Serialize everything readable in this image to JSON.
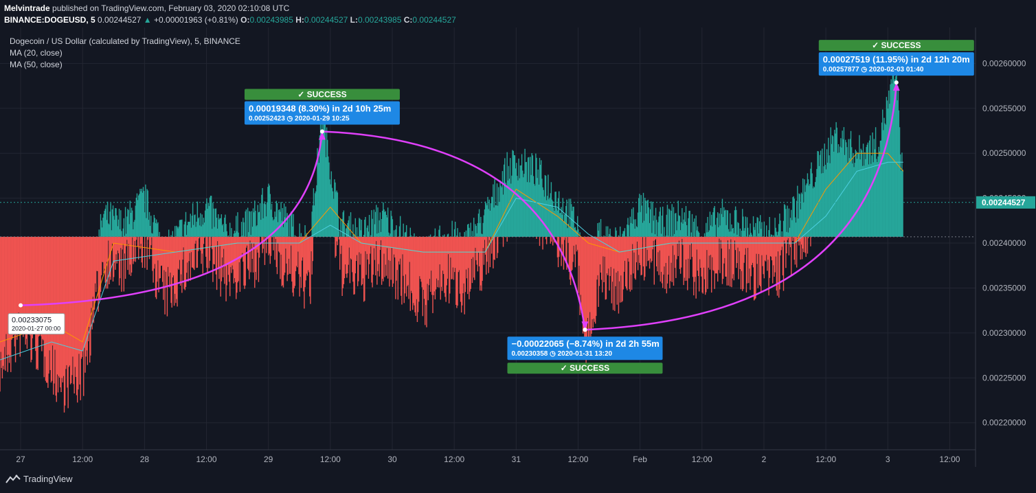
{
  "header": {
    "author": "Melvintrade",
    "published_text": " published on TradingView.com, February 03, 2020 02:10:08 UTC",
    "symbol": "BINANCE:DOGEUSD, 5",
    "last": "0.00244527",
    "change_arrow": "▲",
    "change": "+0.00001963 (+0.81%)",
    "o_label": "O:",
    "o_value": "0.00243985",
    "h_label": "H:",
    "h_value": "0.00244527",
    "l_label": "L:",
    "l_value": "0.00243985",
    "c_label": "C:",
    "c_value": "0.00244527"
  },
  "legend": {
    "title": "Dogecoin / US Dollar (calculated by TradingView), 5, BINANCE",
    "ma1": "MA (20, close)",
    "ma2": "MA (50, close)"
  },
  "footer": {
    "brand": "TradingView",
    "logo_icon": "tradingview-logo-icon"
  },
  "colors": {
    "background": "#131722",
    "up_fill": "#26a69a",
    "down_fill": "#ef5350",
    "ma20": "#ff9800",
    "ma50": "#4dd0e1",
    "arrow": "#e040fb",
    "callout": "#1e88e5",
    "success": "#388e3c",
    "price_badge": "#26a69a"
  },
  "chart_data": {
    "type": "area",
    "title": "Dogecoin / US Dollar (calculated by TradingView), 5, BINANCE",
    "xlabel": "",
    "ylabel": "",
    "x_ticks": [
      "27",
      "12:00",
      "28",
      "12:00",
      "29",
      "12:00",
      "30",
      "12:00",
      "31",
      "12:00",
      "Feb",
      "12:00",
      "2",
      "12:00",
      "3",
      "12:00"
    ],
    "y_ticks": [
      "0.00220000",
      "0.00225000",
      "0.00230000",
      "0.00235000",
      "0.00240000",
      "0.00245000",
      "0.00250000",
      "0.00255000",
      "0.00260000"
    ],
    "ylim": [
      0.00217,
      0.00264
    ],
    "xlim": [
      "2020-01-26 20:00",
      "2020-02-03 17:00"
    ],
    "grid": true,
    "baseline": 0.002407,
    "last_price": "0.00244527",
    "series": [
      {
        "name": "DOGEUSD",
        "x": [
          "2020-01-26 20:00",
          "2020-01-27 00:00",
          "2020-01-27 04:00",
          "2020-01-27 08:00",
          "2020-01-27 12:00",
          "2020-01-27 16:00",
          "2020-01-27 20:00",
          "2020-01-28 00:00",
          "2020-01-28 04:00",
          "2020-01-28 08:00",
          "2020-01-28 12:00",
          "2020-01-28 16:00",
          "2020-01-28 20:00",
          "2020-01-29 00:00",
          "2020-01-29 04:00",
          "2020-01-29 08:00",
          "2020-01-29 10:25",
          "2020-01-29 14:00",
          "2020-01-29 18:00",
          "2020-01-29 22:00",
          "2020-01-30 02:00",
          "2020-01-30 06:00",
          "2020-01-30 10:00",
          "2020-01-30 14:00",
          "2020-01-30 18:00",
          "2020-01-30 22:00",
          "2020-01-31 00:00",
          "2020-01-31 04:00",
          "2020-01-31 08:00",
          "2020-01-31 12:00",
          "2020-01-31 13:20",
          "2020-01-31 16:00",
          "2020-01-31 20:00",
          "2020-02-01 00:00",
          "2020-02-01 04:00",
          "2020-02-01 08:00",
          "2020-02-01 12:00",
          "2020-02-01 16:00",
          "2020-02-01 20:00",
          "2020-02-02 00:00",
          "2020-02-02 02:00",
          "2020-02-02 06:00",
          "2020-02-02 10:00",
          "2020-02-02 14:00",
          "2020-02-02 18:00",
          "2020-02-02 22:00",
          "2020-02-03 01:40",
          "2020-02-03 03:00"
        ],
        "values": [
          0.00229,
          0.00233,
          0.00231,
          0.00227,
          0.00228,
          0.00241,
          0.0024,
          0.00243,
          0.00237,
          0.0024,
          0.00242,
          0.00239,
          0.0024,
          0.00243,
          0.0024,
          0.00238,
          0.00252,
          0.0024,
          0.00239,
          0.00241,
          0.00239,
          0.00236,
          0.00239,
          0.00238,
          0.00241,
          0.00246,
          0.00247,
          0.00246,
          0.00243,
          0.0024,
          0.0023,
          0.00239,
          0.00238,
          0.00242,
          0.0024,
          0.00241,
          0.00239,
          0.00241,
          0.0024,
          0.00239,
          0.00239,
          0.00242,
          0.00246,
          0.0025,
          0.00248,
          0.00249,
          0.00257,
          0.00244
        ]
      },
      {
        "name": "MA (20, close)",
        "x": [
          "2020-01-26 20:00",
          "2020-01-27 06:00",
          "2020-01-27 12:00",
          "2020-01-27 18:00",
          "2020-01-28 06:00",
          "2020-01-28 18:00",
          "2020-01-29 06:00",
          "2020-01-29 12:00",
          "2020-01-29 18:00",
          "2020-01-30 06:00",
          "2020-01-30 18:00",
          "2020-01-31 00:00",
          "2020-01-31 08:00",
          "2020-01-31 14:00",
          "2020-01-31 20:00",
          "2020-02-01 06:00",
          "2020-02-01 18:00",
          "2020-02-02 06:00",
          "2020-02-02 12:00",
          "2020-02-02 18:00",
          "2020-02-03 00:00",
          "2020-02-03 03:00"
        ],
        "values": [
          0.00229,
          0.00231,
          0.00229,
          0.0024,
          0.00239,
          0.0024,
          0.0024,
          0.00244,
          0.0024,
          0.00239,
          0.00239,
          0.00246,
          0.00243,
          0.0024,
          0.00239,
          0.0024,
          0.0024,
          0.0024,
          0.00246,
          0.0025,
          0.0025,
          0.00248
        ]
      },
      {
        "name": "MA (50, close)",
        "x": [
          "2020-01-26 20:00",
          "2020-01-27 06:00",
          "2020-01-27 12:00",
          "2020-01-27 18:00",
          "2020-01-28 06:00",
          "2020-01-28 18:00",
          "2020-01-29 06:00",
          "2020-01-29 12:00",
          "2020-01-29 18:00",
          "2020-01-30 06:00",
          "2020-01-30 18:00",
          "2020-01-31 00:00",
          "2020-01-31 08:00",
          "2020-01-31 14:00",
          "2020-01-31 20:00",
          "2020-02-01 06:00",
          "2020-02-01 18:00",
          "2020-02-02 06:00",
          "2020-02-02 12:00",
          "2020-02-02 18:00",
          "2020-02-03 00:00",
          "2020-02-03 03:00"
        ],
        "values": [
          0.00227,
          0.00229,
          0.00228,
          0.00238,
          0.00239,
          0.0024,
          0.0024,
          0.00242,
          0.0024,
          0.00239,
          0.00239,
          0.00245,
          0.00244,
          0.00241,
          0.00239,
          0.0024,
          0.0024,
          0.0024,
          0.00243,
          0.00248,
          0.00249,
          0.00249
        ]
      }
    ],
    "annotations": [
      {
        "start_x": "2020-01-27 00:00",
        "start_y": 0.00233075,
        "start_price": "0.00233075",
        "start_date": "2020-01-27 00:00",
        "end_x": "2020-01-29 10:25",
        "end_y": 0.00252423,
        "main": "0.00019348 (8.30%) in 2d 10h 25m",
        "end_price": "0.00252423",
        "end_date": "2020-01-29  10:25",
        "status": "✓ SUCCESS",
        "status_pos": "above"
      },
      {
        "start_x": "2020-01-29 10:25",
        "start_y": 0.00252423,
        "end_x": "2020-01-31 13:20",
        "end_y": 0.00230358,
        "main": "−0.00022065 (−8.74%) in 2d 2h 55m",
        "end_price": "0.00230358",
        "end_date": "2020-01-31  13:20",
        "status": "✓ SUCCESS",
        "status_pos": "below"
      },
      {
        "start_x": "2020-01-31 13:20",
        "start_y": 0.00230358,
        "end_x": "2020-02-03 01:40",
        "end_y": 0.00257877,
        "main": "0.00027519 (11.95%) in 2d 12h 20m",
        "end_price": "0.00257877",
        "end_date": "2020-02-03  01:40",
        "status": "✓ SUCCESS",
        "status_pos": "above"
      }
    ]
  }
}
